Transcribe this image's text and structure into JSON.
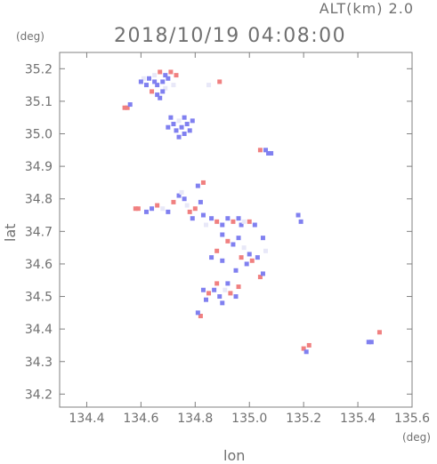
{
  "header": {
    "altitude_label": "ALT(km) 2.0",
    "timestamp": "2018/10/19 04:08:00"
  },
  "colors": {
    "axis": "#808080",
    "positive": "#f08080",
    "negative": "#8080f0",
    "neutral": "#e8e8f8"
  },
  "chart_data": {
    "type": "scatter",
    "title": "2018/10/19 04:08:00",
    "subtitle": "ALT(km) 2.0",
    "xlabel": "lon",
    "ylabel": "lat",
    "x_unit": "(deg)",
    "y_unit": "(deg)",
    "xlim": [
      134.3,
      135.6
    ],
    "ylim": [
      34.16,
      35.25
    ],
    "x_ticks": [
      134.4,
      134.6,
      134.8,
      135.0,
      135.2,
      135.4,
      135.6
    ],
    "x_tick_labels": [
      "134.4",
      "134.6",
      "134.8",
      "135.0",
      "135.2",
      "135.4",
      "135.6"
    ],
    "y_ticks": [
      34.2,
      34.3,
      34.4,
      34.5,
      34.6,
      34.7,
      34.8,
      34.9,
      35.0,
      35.1,
      35.2
    ],
    "y_tick_labels": [
      "34.2",
      "34.3",
      "34.4",
      "34.5",
      "34.6",
      "34.7",
      "34.8",
      "34.9",
      "35.0",
      "35.1",
      "35.2"
    ],
    "grid": false,
    "legend": "none",
    "points": [
      {
        "x": 134.63,
        "y": 35.17,
        "c": "neg"
      },
      {
        "x": 134.65,
        "y": 35.18,
        "c": "neu"
      },
      {
        "x": 134.66,
        "y": 35.15,
        "c": "neg"
      },
      {
        "x": 134.67,
        "y": 35.19,
        "c": "pos"
      },
      {
        "x": 134.68,
        "y": 35.16,
        "c": "neg"
      },
      {
        "x": 134.69,
        "y": 35.14,
        "c": "neu"
      },
      {
        "x": 134.62,
        "y": 35.15,
        "c": "neg"
      },
      {
        "x": 134.7,
        "y": 35.17,
        "c": "neg"
      },
      {
        "x": 134.71,
        "y": 35.19,
        "c": "pos"
      },
      {
        "x": 134.64,
        "y": 35.13,
        "c": "pos"
      },
      {
        "x": 134.66,
        "y": 35.12,
        "c": "neg"
      },
      {
        "x": 134.68,
        "y": 35.13,
        "c": "neg"
      },
      {
        "x": 134.61,
        "y": 35.17,
        "c": "neu"
      },
      {
        "x": 134.67,
        "y": 35.11,
        "c": "neg"
      },
      {
        "x": 134.69,
        "y": 35.18,
        "c": "neg"
      },
      {
        "x": 134.72,
        "y": 35.15,
        "c": "neu"
      },
      {
        "x": 134.73,
        "y": 35.18,
        "c": "pos"
      },
      {
        "x": 134.65,
        "y": 35.16,
        "c": "neg"
      },
      {
        "x": 134.6,
        "y": 35.16,
        "c": "neg"
      },
      {
        "x": 134.55,
        "y": 35.08,
        "c": "pos"
      },
      {
        "x": 134.54,
        "y": 35.08,
        "c": "pos"
      },
      {
        "x": 134.56,
        "y": 35.09,
        "c": "neg"
      },
      {
        "x": 134.89,
        "y": 35.16,
        "c": "pos"
      },
      {
        "x": 134.85,
        "y": 35.15,
        "c": "neu"
      },
      {
        "x": 134.71,
        "y": 35.05,
        "c": "neg"
      },
      {
        "x": 134.72,
        "y": 35.03,
        "c": "neg"
      },
      {
        "x": 134.73,
        "y": 35.01,
        "c": "neg"
      },
      {
        "x": 134.74,
        "y": 35.04,
        "c": "neu"
      },
      {
        "x": 134.75,
        "y": 35.02,
        "c": "neg"
      },
      {
        "x": 134.76,
        "y": 35.05,
        "c": "neg"
      },
      {
        "x": 134.77,
        "y": 35.03,
        "c": "neg"
      },
      {
        "x": 134.78,
        "y": 35.01,
        "c": "neg"
      },
      {
        "x": 134.79,
        "y": 35.04,
        "c": "neg"
      },
      {
        "x": 134.74,
        "y": 34.99,
        "c": "neg"
      },
      {
        "x": 134.76,
        "y": 35.0,
        "c": "neg"
      },
      {
        "x": 134.7,
        "y": 35.02,
        "c": "neg"
      },
      {
        "x": 135.04,
        "y": 34.95,
        "c": "pos"
      },
      {
        "x": 135.06,
        "y": 34.95,
        "c": "neg"
      },
      {
        "x": 135.07,
        "y": 34.94,
        "c": "neg"
      },
      {
        "x": 135.08,
        "y": 34.94,
        "c": "neg"
      },
      {
        "x": 134.58,
        "y": 34.77,
        "c": "pos"
      },
      {
        "x": 134.59,
        "y": 34.77,
        "c": "pos"
      },
      {
        "x": 134.62,
        "y": 34.76,
        "c": "neg"
      },
      {
        "x": 134.64,
        "y": 34.77,
        "c": "neg"
      },
      {
        "x": 134.66,
        "y": 34.78,
        "c": "pos"
      },
      {
        "x": 134.68,
        "y": 34.77,
        "c": "neu"
      },
      {
        "x": 134.7,
        "y": 34.76,
        "c": "neg"
      },
      {
        "x": 134.72,
        "y": 34.79,
        "c": "pos"
      },
      {
        "x": 134.74,
        "y": 34.81,
        "c": "neg"
      },
      {
        "x": 134.76,
        "y": 34.8,
        "c": "neg"
      },
      {
        "x": 134.77,
        "y": 34.78,
        "c": "neu"
      },
      {
        "x": 134.78,
        "y": 34.76,
        "c": "pos"
      },
      {
        "x": 134.79,
        "y": 34.74,
        "c": "neg"
      },
      {
        "x": 134.8,
        "y": 34.77,
        "c": "pos"
      },
      {
        "x": 134.82,
        "y": 34.79,
        "c": "neg"
      },
      {
        "x": 134.83,
        "y": 34.75,
        "c": "neg"
      },
      {
        "x": 134.84,
        "y": 34.72,
        "c": "neu"
      },
      {
        "x": 134.86,
        "y": 34.74,
        "c": "neg"
      },
      {
        "x": 134.88,
        "y": 34.73,
        "c": "pos"
      },
      {
        "x": 134.9,
        "y": 34.72,
        "c": "neg"
      },
      {
        "x": 134.92,
        "y": 34.74,
        "c": "neg"
      },
      {
        "x": 134.94,
        "y": 34.73,
        "c": "pos"
      },
      {
        "x": 134.96,
        "y": 34.74,
        "c": "neg"
      },
      {
        "x": 134.97,
        "y": 34.72,
        "c": "neg"
      },
      {
        "x": 134.98,
        "y": 34.73,
        "c": "neu"
      },
      {
        "x": 135.0,
        "y": 34.73,
        "c": "pos"
      },
      {
        "x": 135.02,
        "y": 34.72,
        "c": "neg"
      },
      {
        "x": 134.81,
        "y": 34.84,
        "c": "neg"
      },
      {
        "x": 134.83,
        "y": 34.85,
        "c": "pos"
      },
      {
        "x": 134.75,
        "y": 34.82,
        "c": "neu"
      },
      {
        "x": 134.9,
        "y": 34.69,
        "c": "neg"
      },
      {
        "x": 134.92,
        "y": 34.67,
        "c": "pos"
      },
      {
        "x": 134.94,
        "y": 34.66,
        "c": "neg"
      },
      {
        "x": 134.96,
        "y": 34.68,
        "c": "neg"
      },
      {
        "x": 134.98,
        "y": 34.65,
        "c": "neu"
      },
      {
        "x": 135.0,
        "y": 34.63,
        "c": "neg"
      },
      {
        "x": 135.01,
        "y": 34.61,
        "c": "pos"
      },
      {
        "x": 135.03,
        "y": 34.62,
        "c": "neg"
      },
      {
        "x": 134.99,
        "y": 34.6,
        "c": "neg"
      },
      {
        "x": 134.97,
        "y": 34.62,
        "c": "pos"
      },
      {
        "x": 135.05,
        "y": 34.68,
        "c": "neg"
      },
      {
        "x": 135.06,
        "y": 34.64,
        "c": "neu"
      },
      {
        "x": 135.04,
        "y": 34.56,
        "c": "pos"
      },
      {
        "x": 135.05,
        "y": 34.57,
        "c": "neg"
      },
      {
        "x": 134.95,
        "y": 34.58,
        "c": "neg"
      },
      {
        "x": 134.83,
        "y": 34.52,
        "c": "neg"
      },
      {
        "x": 134.85,
        "y": 34.51,
        "c": "pos"
      },
      {
        "x": 134.87,
        "y": 34.52,
        "c": "neg"
      },
      {
        "x": 134.89,
        "y": 34.5,
        "c": "neg"
      },
      {
        "x": 134.91,
        "y": 34.52,
        "c": "neu"
      },
      {
        "x": 134.93,
        "y": 34.51,
        "c": "pos"
      },
      {
        "x": 134.95,
        "y": 34.5,
        "c": "neg"
      },
      {
        "x": 134.92,
        "y": 34.54,
        "c": "neg"
      },
      {
        "x": 134.88,
        "y": 34.54,
        "c": "pos"
      },
      {
        "x": 134.84,
        "y": 34.49,
        "c": "neg"
      },
      {
        "x": 134.9,
        "y": 34.48,
        "c": "neg"
      },
      {
        "x": 134.96,
        "y": 34.53,
        "c": "pos"
      },
      {
        "x": 134.82,
        "y": 34.44,
        "c": "pos"
      },
      {
        "x": 134.81,
        "y": 34.45,
        "c": "neg"
      },
      {
        "x": 134.86,
        "y": 34.62,
        "c": "neg"
      },
      {
        "x": 134.88,
        "y": 34.64,
        "c": "pos"
      },
      {
        "x": 134.9,
        "y": 34.61,
        "c": "neg"
      },
      {
        "x": 135.18,
        "y": 34.75,
        "c": "neg"
      },
      {
        "x": 135.19,
        "y": 34.73,
        "c": "neg"
      },
      {
        "x": 135.2,
        "y": 34.34,
        "c": "pos"
      },
      {
        "x": 135.21,
        "y": 34.33,
        "c": "neg"
      },
      {
        "x": 135.22,
        "y": 34.35,
        "c": "pos"
      },
      {
        "x": 135.44,
        "y": 34.36,
        "c": "neg"
      },
      {
        "x": 135.45,
        "y": 34.36,
        "c": "neg"
      },
      {
        "x": 135.48,
        "y": 34.39,
        "c": "pos"
      }
    ]
  }
}
